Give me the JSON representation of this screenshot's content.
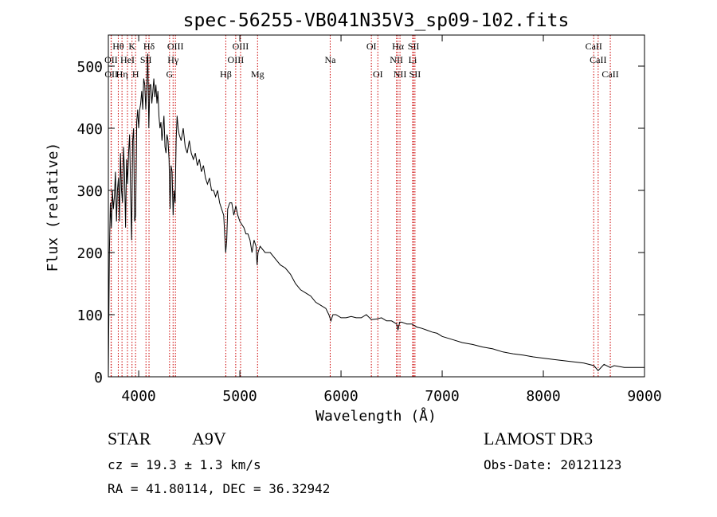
{
  "chart_data": {
    "type": "line",
    "title": "spec-56255-VB041N35V3_sp09-102.fits",
    "xlabel": "Wavelength (Å)",
    "ylabel": "Flux (relative)",
    "xlim": [
      3700,
      9000
    ],
    "ylim": [
      0,
      550
    ],
    "xticks": [
      4000,
      5000,
      6000,
      7000,
      8000,
      9000
    ],
    "yticks": [
      0,
      100,
      200,
      300,
      400,
      500
    ],
    "series": [
      {
        "name": "flux",
        "points": [
          [
            3700,
            0
          ],
          [
            3710,
            200
          ],
          [
            3720,
            280
          ],
          [
            3730,
            240
          ],
          [
            3740,
            300
          ],
          [
            3750,
            270
          ],
          [
            3760,
            290
          ],
          [
            3770,
            330
          ],
          [
            3780,
            250
          ],
          [
            3790,
            300
          ],
          [
            3800,
            320
          ],
          [
            3810,
            250
          ],
          [
            3820,
            360
          ],
          [
            3830,
            300
          ],
          [
            3840,
            280
          ],
          [
            3850,
            370
          ],
          [
            3860,
            330
          ],
          [
            3870,
            240
          ],
          [
            3880,
            350
          ],
          [
            3890,
            310
          ],
          [
            3900,
            360
          ],
          [
            3910,
            390
          ],
          [
            3920,
            300
          ],
          [
            3930,
            220
          ],
          [
            3940,
            380
          ],
          [
            3950,
            400
          ],
          [
            3960,
            250
          ],
          [
            3970,
            260
          ],
          [
            3980,
            410
          ],
          [
            3990,
            430
          ],
          [
            4000,
            400
          ],
          [
            4010,
            430
          ],
          [
            4020,
            440
          ],
          [
            4030,
            460
          ],
          [
            4040,
            430
          ],
          [
            4050,
            480
          ],
          [
            4060,
            470
          ],
          [
            4070,
            430
          ],
          [
            4080,
            470
          ],
          [
            4090,
            520
          ],
          [
            4100,
            400
          ],
          [
            4110,
            470
          ],
          [
            4120,
            470
          ],
          [
            4130,
            440
          ],
          [
            4140,
            460
          ],
          [
            4150,
            480
          ],
          [
            4160,
            450
          ],
          [
            4170,
            470
          ],
          [
            4180,
            440
          ],
          [
            4190,
            460
          ],
          [
            4200,
            420
          ],
          [
            4210,
            400
          ],
          [
            4220,
            410
          ],
          [
            4230,
            380
          ],
          [
            4240,
            400
          ],
          [
            4250,
            420
          ],
          [
            4260,
            370
          ],
          [
            4270,
            360
          ],
          [
            4280,
            390
          ],
          [
            4290,
            380
          ],
          [
            4300,
            350
          ],
          [
            4310,
            270
          ],
          [
            4320,
            340
          ],
          [
            4330,
            330
          ],
          [
            4340,
            260
          ],
          [
            4350,
            300
          ],
          [
            4360,
            280
          ],
          [
            4370,
            380
          ],
          [
            4380,
            420
          ],
          [
            4390,
            400
          ],
          [
            4400,
            390
          ],
          [
            4420,
            380
          ],
          [
            4440,
            400
          ],
          [
            4460,
            370
          ],
          [
            4480,
            360
          ],
          [
            4500,
            380
          ],
          [
            4520,
            360
          ],
          [
            4540,
            350
          ],
          [
            4560,
            360
          ],
          [
            4580,
            340
          ],
          [
            4600,
            350
          ],
          [
            4620,
            330
          ],
          [
            4640,
            340
          ],
          [
            4660,
            320
          ],
          [
            4680,
            310
          ],
          [
            4700,
            320
          ],
          [
            4720,
            300
          ],
          [
            4740,
            300
          ],
          [
            4760,
            290
          ],
          [
            4780,
            300
          ],
          [
            4800,
            280
          ],
          [
            4820,
            270
          ],
          [
            4840,
            260
          ],
          [
            4850,
            230
          ],
          [
            4860,
            200
          ],
          [
            4870,
            220
          ],
          [
            4880,
            270
          ],
          [
            4900,
            280
          ],
          [
            4920,
            280
          ],
          [
            4940,
            260
          ],
          [
            4960,
            275
          ],
          [
            4980,
            260
          ],
          [
            5000,
            250
          ],
          [
            5020,
            245
          ],
          [
            5040,
            240
          ],
          [
            5060,
            230
          ],
          [
            5080,
            230
          ],
          [
            5100,
            220
          ],
          [
            5120,
            200
          ],
          [
            5140,
            220
          ],
          [
            5160,
            210
          ],
          [
            5170,
            180
          ],
          [
            5180,
            200
          ],
          [
            5200,
            210
          ],
          [
            5250,
            200
          ],
          [
            5300,
            200
          ],
          [
            5350,
            190
          ],
          [
            5400,
            180
          ],
          [
            5450,
            175
          ],
          [
            5500,
            165
          ],
          [
            5550,
            150
          ],
          [
            5600,
            140
          ],
          [
            5650,
            135
          ],
          [
            5700,
            130
          ],
          [
            5750,
            120
          ],
          [
            5800,
            115
          ],
          [
            5850,
            110
          ],
          [
            5880,
            100
          ],
          [
            5900,
            90
          ],
          [
            5920,
            100
          ],
          [
            5950,
            100
          ],
          [
            6000,
            95
          ],
          [
            6050,
            95
          ],
          [
            6100,
            97
          ],
          [
            6150,
            95
          ],
          [
            6200,
            95
          ],
          [
            6250,
            100
          ],
          [
            6300,
            92
          ],
          [
            6350,
            93
          ],
          [
            6400,
            95
          ],
          [
            6450,
            90
          ],
          [
            6500,
            90
          ],
          [
            6550,
            85
          ],
          [
            6563,
            75
          ],
          [
            6580,
            88
          ],
          [
            6600,
            88
          ],
          [
            6650,
            85
          ],
          [
            6700,
            85
          ],
          [
            6750,
            80
          ],
          [
            6800,
            78
          ],
          [
            6850,
            75
          ],
          [
            6900,
            72
          ],
          [
            6950,
            70
          ],
          [
            7000,
            65
          ],
          [
            7100,
            60
          ],
          [
            7200,
            55
          ],
          [
            7300,
            52
          ],
          [
            7400,
            48
          ],
          [
            7500,
            45
          ],
          [
            7600,
            40
          ],
          [
            7700,
            37
          ],
          [
            7800,
            35
          ],
          [
            7900,
            32
          ],
          [
            8000,
            30
          ],
          [
            8100,
            28
          ],
          [
            8200,
            26
          ],
          [
            8300,
            24
          ],
          [
            8400,
            22
          ],
          [
            8500,
            18
          ],
          [
            8542,
            10
          ],
          [
            8600,
            20
          ],
          [
            8662,
            15
          ],
          [
            8700,
            18
          ],
          [
            8800,
            15
          ],
          [
            8900,
            15
          ],
          [
            9000,
            15
          ]
        ]
      }
    ],
    "line_labels": [
      {
        "text": "Hθ",
        "wl": 3798,
        "row": 0
      },
      {
        "text": "K",
        "wl": 3934,
        "row": 0
      },
      {
        "text": "Hδ",
        "wl": 4102,
        "row": 0
      },
      {
        "text": "OIII",
        "wl": 4363,
        "row": 0
      },
      {
        "text": "OIII",
        "wl": 5007,
        "row": 0
      },
      {
        "text": "OI",
        "wl": 6300,
        "row": 0
      },
      {
        "text": "Hα",
        "wl": 6563,
        "row": 0
      },
      {
        "text": "SII",
        "wl": 6717,
        "row": 0
      },
      {
        "text": "CaII",
        "wl": 8498,
        "row": 0
      },
      {
        "text": "OII",
        "wl": 3727,
        "row": 1
      },
      {
        "text": "HeI",
        "wl": 3889,
        "row": 1
      },
      {
        "text": "SII",
        "wl": 4072,
        "row": 1
      },
      {
        "text": "Hγ",
        "wl": 4340,
        "row": 1
      },
      {
        "text": "OIII",
        "wl": 4959,
        "row": 1
      },
      {
        "text": "Na",
        "wl": 5893,
        "row": 1
      },
      {
        "text": "NII",
        "wl": 6548,
        "row": 1
      },
      {
        "text": "Li",
        "wl": 6708,
        "row": 1
      },
      {
        "text": "CaII",
        "wl": 8542,
        "row": 1
      },
      {
        "text": "OII",
        "wl": 3729,
        "row": 2
      },
      {
        "text": "Hη",
        "wl": 3835,
        "row": 2
      },
      {
        "text": "H",
        "wl": 3969,
        "row": 2
      },
      {
        "text": "G",
        "wl": 4305,
        "row": 2
      },
      {
        "text": "Hβ",
        "wl": 4861,
        "row": 2
      },
      {
        "text": "Mg",
        "wl": 5175,
        "row": 2
      },
      {
        "text": "OI",
        "wl": 6364,
        "row": 2
      },
      {
        "text": "NII",
        "wl": 6583,
        "row": 2
      },
      {
        "text": "SII",
        "wl": 6731,
        "row": 2
      },
      {
        "text": "CaII",
        "wl": 8662,
        "row": 2
      }
    ]
  },
  "info": {
    "object_type": "STAR",
    "subclass": "A9V",
    "survey": "LAMOST DR3",
    "redshift": "cz = 19.3 ± 1.3 km/s",
    "obs_date": "Obs-Date: 20121123",
    "coords": "RA =  41.80114, DEC =  36.32942"
  }
}
